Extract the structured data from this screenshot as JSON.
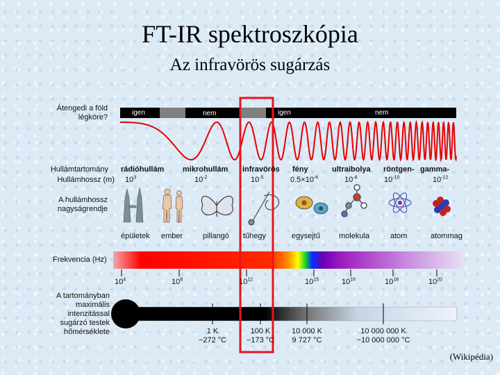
{
  "title": "FT-IR spektroszkópia",
  "subtitle": "Az infravörös sugárzás",
  "credit": "(Wikipédia)",
  "atmosphere": {
    "question": "Átengedi a föld légköre?",
    "segments": [
      "igen",
      "nem",
      "igen",
      "nem"
    ]
  },
  "row_labels": {
    "region": "Hullámtartomány",
    "wavelength": "Hullámhossz (m)",
    "scale": "A hullámhossz nagyságrendje",
    "frequency": "Frekvencia (Hz)",
    "temperature": "A tartományban maximális intenzitással sugárzó testek hőmérséklete"
  },
  "regions": [
    "rádióhullám",
    "mikrohullám",
    "infravörös",
    "fény",
    "ultraibolya",
    "röntgen-",
    "gamma-"
  ],
  "wavelengths": [
    {
      "base": "10",
      "exp": "3"
    },
    {
      "base": "10",
      "exp": "-2"
    },
    {
      "base": "10",
      "exp": "-5"
    },
    {
      "base": "0.5×10",
      "exp": "-6"
    },
    {
      "base": "10",
      "exp": "-8"
    },
    {
      "base": "10",
      "exp": "-10"
    },
    {
      "base": "10",
      "exp": "-12"
    }
  ],
  "objects": [
    "épületek",
    "ember",
    "pillangó",
    "tűhegy",
    "egysejtű",
    "molekula",
    "atom",
    "atommag"
  ],
  "frequencies": [
    {
      "base": "10",
      "exp": "4"
    },
    {
      "base": "10",
      "exp": "8"
    },
    {
      "base": "10",
      "exp": "12"
    },
    {
      "base": "10",
      "exp": "15"
    },
    {
      "base": "10",
      "exp": "16"
    },
    {
      "base": "10",
      "exp": "18"
    },
    {
      "base": "10",
      "exp": "20"
    }
  ],
  "temperatures": [
    {
      "k": "1 K",
      "c": "−272 °C"
    },
    {
      "k": "100 K",
      "c": "−173 °C"
    },
    {
      "k": "10 000 K",
      "c": "9 727 °C"
    },
    {
      "k": "10 000 000 K",
      "c": "~10 000 000 °C"
    }
  ],
  "colors": {
    "highlight": "#e8141e",
    "bar_black": "#000000",
    "bar_gray": "#808080",
    "wave": "#e60000"
  }
}
